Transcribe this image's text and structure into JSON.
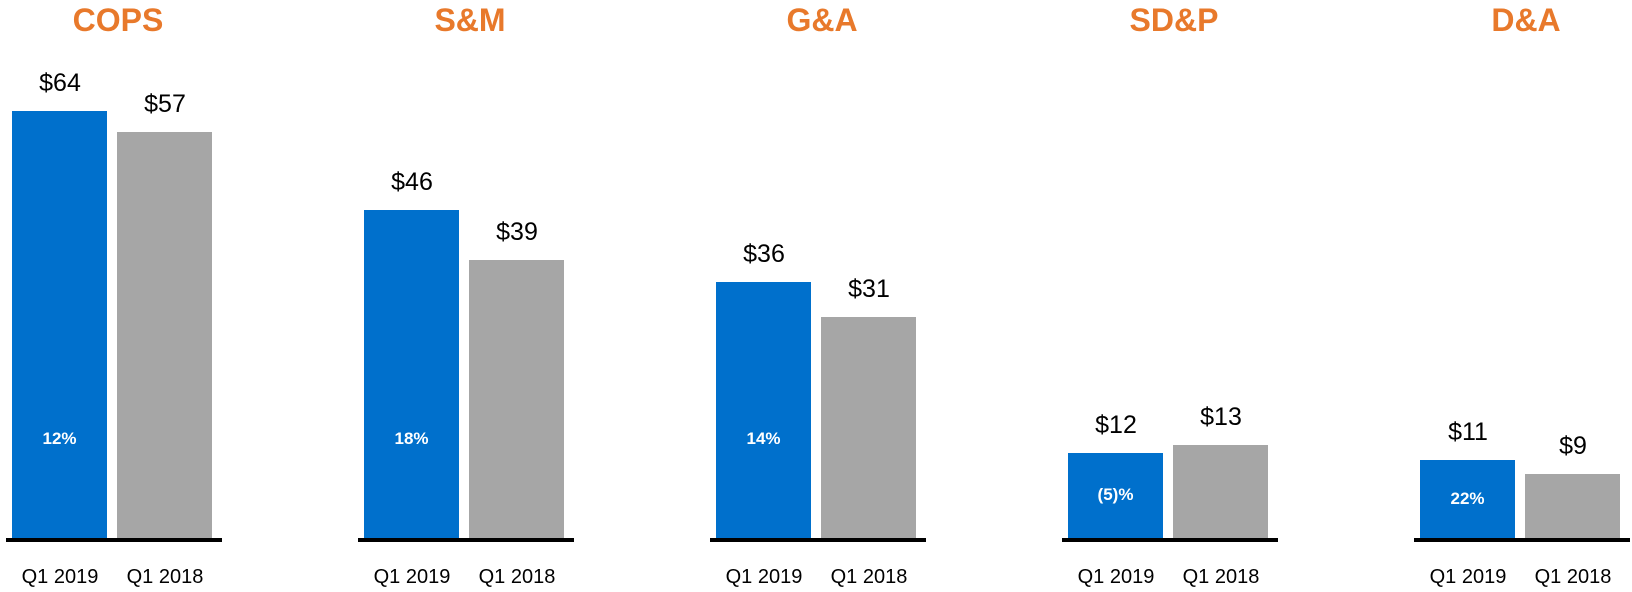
{
  "colors": {
    "title": "#E8792B",
    "current": "#0070CC",
    "prior": "#A6A6A6"
  },
  "chart_data": [
    {
      "type": "bar",
      "title": "COPS",
      "categories": [
        "Q1 2019",
        "Q1 2018"
      ],
      "values": [
        64,
        57
      ],
      "value_labels": [
        "$64",
        "$57"
      ],
      "change_label": "12%"
    },
    {
      "type": "bar",
      "title": "S&M",
      "categories": [
        "Q1 2019",
        "Q1 2018"
      ],
      "values": [
        46,
        39
      ],
      "value_labels": [
        "$46",
        "$39"
      ],
      "change_label": "18%"
    },
    {
      "type": "bar",
      "title": "G&A",
      "categories": [
        "Q1 2019",
        "Q1 2018"
      ],
      "values": [
        36,
        31
      ],
      "value_labels": [
        "$36",
        "$31"
      ],
      "change_label": "14%"
    },
    {
      "type": "bar",
      "title": "SD&P",
      "categories": [
        "Q1 2019",
        "Q1 2018"
      ],
      "values": [
        12,
        13
      ],
      "value_labels": [
        "$12",
        "$13"
      ],
      "change_label": "(5)%"
    },
    {
      "type": "bar",
      "title": "D&A",
      "categories": [
        "Q1 2019",
        "Q1 2018"
      ],
      "values": [
        11,
        9
      ],
      "value_labels": [
        "$11",
        "$9"
      ],
      "change_label": "22%"
    }
  ]
}
